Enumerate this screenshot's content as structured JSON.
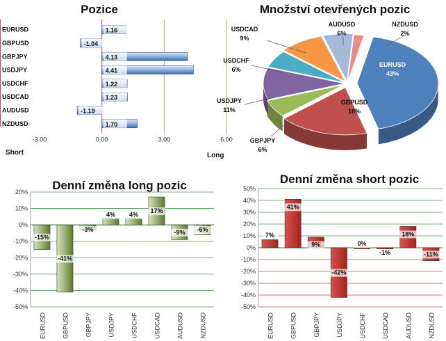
{
  "chart_data": [
    {
      "type": "bar",
      "orientation": "horizontal",
      "title": "Pozice",
      "categories": [
        "EURUSD",
        "GBPUSD",
        "GBPJPY",
        "USDJPY",
        "USDCHF",
        "USDCAD",
        "AUDUSD",
        "NZDUSD"
      ],
      "values": [
        1.16,
        -1.04,
        4.13,
        4.41,
        1.22,
        1.23,
        -1.19,
        1.7
      ],
      "value_labels": [
        "1.16",
        "-1.04",
        "4.13",
        "4.41",
        "1.22",
        "1.23",
        "-1.19",
        "1.70"
      ],
      "xlim": [
        -3,
        6
      ],
      "ticks": [
        "-3.00",
        "0.00",
        "3.00",
        "6.00"
      ],
      "tick_values": [
        -3,
        0,
        3,
        6
      ],
      "left_label": "Short",
      "right_label": "Long",
      "colors": {
        "bar": "#4f81bd",
        "bar_light": "#dfe9f6",
        "axis": "#c0504d",
        "grid": "#9bbb59"
      }
    },
    {
      "type": "pie",
      "title": "Množství otevřených pozic",
      "slices": [
        {
          "name": "EURUSD",
          "value": 43,
          "label": "43%",
          "color": "#4f81bd"
        },
        {
          "name": "GBPUSD",
          "value": 18,
          "label": "18%",
          "color": "#c0504d"
        },
        {
          "name": "GBPJPY",
          "value": 6,
          "label": "6%",
          "color": "#9bbb59"
        },
        {
          "name": "USDJPY",
          "value": 11,
          "label": "11%",
          "color": "#8064a2"
        },
        {
          "name": "USDCHF",
          "value": 6,
          "label": "6%",
          "color": "#4bacc6"
        },
        {
          "name": "USDCAD",
          "value": 9,
          "label": "9%",
          "color": "#f79646"
        },
        {
          "name": "AUDUSD",
          "value": 6,
          "label": "6%",
          "color": "#a5b9d9"
        },
        {
          "name": "NZDUSD",
          "value": 2,
          "label": "2%",
          "color": "#e8898a"
        }
      ]
    },
    {
      "type": "bar",
      "title": "Denní změna long pozic",
      "categories": [
        "EURUSD",
        "GBPUSD",
        "GBPJPY",
        "USDJPY",
        "USDCHF",
        "USDCAD",
        "AUDUSD",
        "NZDUSD"
      ],
      "values": [
        -15,
        -41,
        -3,
        4,
        4,
        17,
        -9,
        -6
      ],
      "value_labels": [
        "-15%",
        "-41%",
        "-3%",
        "4%",
        "4%",
        "17%",
        "-9%",
        "-6%"
      ],
      "ylim": [
        -50,
        20
      ],
      "ticks": [
        "20%",
        "10%",
        "0%",
        "-10%",
        "-20%",
        "-30%",
        "-40%",
        "-50%"
      ],
      "tick_values": [
        20,
        10,
        0,
        -10,
        -20,
        -30,
        -40,
        -50
      ],
      "colors": {
        "bar": "#77933c",
        "bar_light": "#d7e4bd",
        "grid": "#4f9a4f"
      }
    },
    {
      "type": "bar",
      "title": "Denní změna short pozic",
      "categories": [
        "EURUSD",
        "GBPUSD",
        "GBPJPY",
        "USDJPY",
        "USDCHF",
        "USDCAD",
        "AUDUSD",
        "NZDUSD"
      ],
      "values": [
        7,
        41,
        9,
        -42,
        0,
        -1,
        18,
        -11
      ],
      "value_labels": [
        "7%",
        "41%",
        "9%",
        "-42%",
        "0%",
        "-1%",
        "18%",
        "-11%"
      ],
      "ylim": [
        -50,
        50
      ],
      "ticks": [
        "50%",
        "40%",
        "30%",
        "20%",
        "10%",
        "0%",
        "-10%",
        "-20%",
        "-30%",
        "-40%",
        "-50%"
      ],
      "tick_values": [
        50,
        40,
        30,
        20,
        10,
        0,
        -10,
        -20,
        -30,
        -40,
        -50
      ],
      "colors": {
        "bar": "#c0302d",
        "bar_light": "#f2b6b5",
        "grid": "#4f9a4f",
        "grid_neg": "#c0504d"
      }
    }
  ]
}
